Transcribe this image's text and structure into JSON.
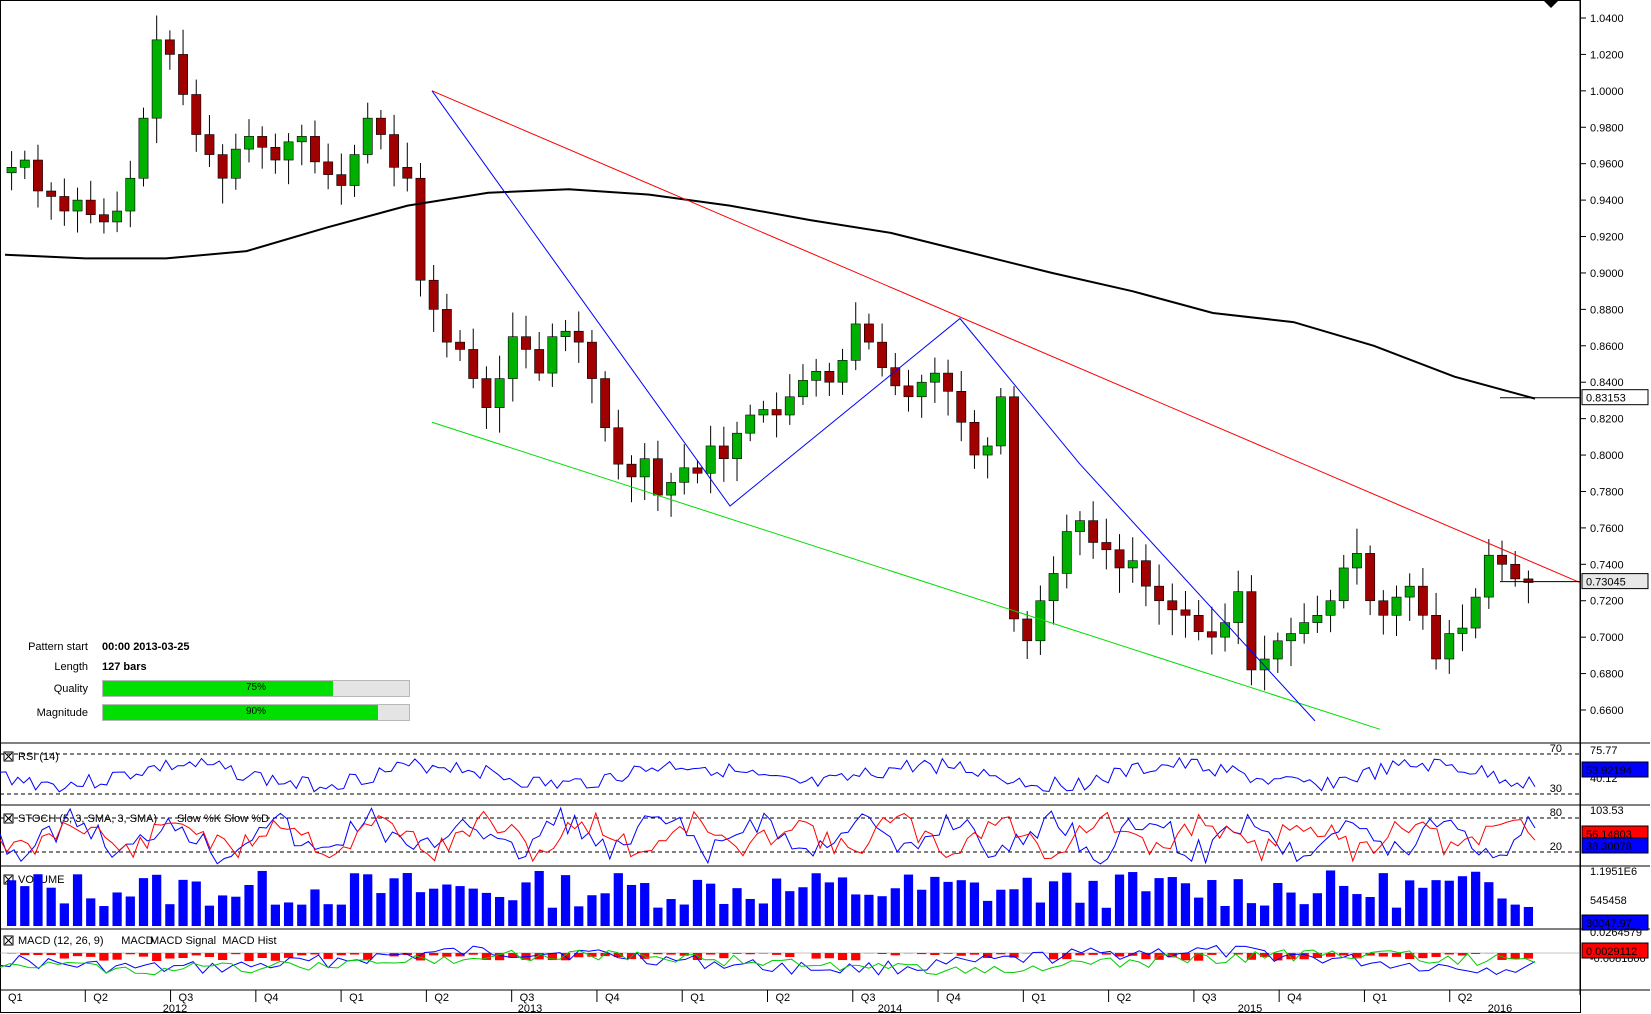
{
  "chart_data": {
    "type": "candlestick",
    "instrument_note": "",
    "price_axis": {
      "ticks": [
        "1.0400",
        "1.0200",
        "1.0000",
        "0.9800",
        "0.9600",
        "0.9400",
        "0.9200",
        "0.9000",
        "0.8800",
        "0.8600",
        "0.8400",
        "0.8200",
        "0.8000",
        "0.7800",
        "0.7600",
        "0.7400",
        "0.7200",
        "0.7000",
        "0.6800",
        "0.6600"
      ],
      "ylim": [
        0.648,
        1.045
      ],
      "last_price": "0.73045",
      "ma_value": "0.83153"
    },
    "x_axis": {
      "quarters": [
        "Q1",
        "Q2",
        "Q3",
        "Q4",
        "Q1",
        "Q2",
        "Q3",
        "Q4",
        "Q1",
        "Q2",
        "Q3",
        "Q4",
        "Q1",
        "Q2",
        "Q3",
        "Q4",
        "Q1",
        "Q2"
      ],
      "years": [
        "2012",
        "2013",
        "2014",
        "2015",
        "2016"
      ]
    },
    "pattern": {
      "start_label": "Pattern start",
      "start_value": "00:00 2013-03-25",
      "length_label": "Length",
      "length_value": "127 bars",
      "quality_label": "Quality",
      "quality_value": 75,
      "quality_text": "75%",
      "magnitude_label": "Magnitude",
      "magnitude_value": 90,
      "magnitude_text": "90%"
    },
    "trendlines": {
      "resistance": [
        [
          0,
          1.0
        ],
        [
          1,
          0.73
        ]
      ],
      "support": [
        [
          0,
          0.818
        ],
        [
          1,
          0.645
        ]
      ],
      "zigzag": [
        1.0,
        0.772,
        0.875,
        0.795,
        0.654
      ]
    },
    "moving_average": [
      0.91,
      0.908,
      0.908,
      0.912,
      0.925,
      0.937,
      0.944,
      0.946,
      0.943,
      0.937,
      0.929,
      0.922,
      0.911,
      0.9,
      0.89,
      0.878,
      0.873,
      0.86,
      0.843,
      0.831
    ],
    "candles_close": [
      0.958,
      0.962,
      0.945,
      0.942,
      0.934,
      0.94,
      0.932,
      0.928,
      0.934,
      0.952,
      0.985,
      1.028,
      1.02,
      0.998,
      0.976,
      0.965,
      0.952,
      0.968,
      0.975,
      0.969,
      0.962,
      0.972,
      0.975,
      0.961,
      0.954,
      0.948,
      0.965,
      0.985,
      0.976,
      0.958,
      0.952,
      0.896,
      0.88,
      0.862,
      0.858,
      0.842,
      0.826,
      0.842,
      0.865,
      0.858,
      0.845,
      0.865,
      0.868,
      0.862,
      0.842,
      0.815,
      0.795,
      0.788,
      0.798,
      0.778,
      0.785,
      0.793,
      0.79,
      0.805,
      0.798,
      0.812,
      0.822,
      0.825,
      0.822,
      0.832,
      0.841,
      0.846,
      0.84,
      0.852,
      0.872,
      0.862,
      0.848,
      0.838,
      0.832,
      0.84,
      0.845,
      0.835,
      0.818,
      0.8,
      0.805,
      0.832,
      0.71,
      0.698,
      0.72,
      0.735,
      0.758,
      0.764,
      0.752,
      0.748,
      0.738,
      0.742,
      0.728,
      0.72,
      0.715,
      0.712,
      0.703,
      0.7,
      0.708,
      0.725,
      0.682,
      0.688,
      0.698,
      0.702,
      0.708,
      0.712,
      0.72,
      0.738,
      0.746,
      0.72,
      0.712,
      0.722,
      0.728,
      0.712,
      0.688,
      0.702,
      0.705,
      0.722,
      0.745,
      0.74,
      0.732,
      0.73
    ],
    "indicators": {
      "rsi": {
        "title": "RSI (14)",
        "levels": [
          "70",
          "30"
        ],
        "scale": [
          "75.77",
          "40.12"
        ],
        "value": "53.92194"
      },
      "stoch": {
        "title": "STOCH (5, 3, SMA, 3, SMA)",
        "k_label": "Slow %K",
        "d_label": "Slow %D",
        "levels": [
          "80",
          "20"
        ],
        "scale": [
          "103.53"
        ],
        "value_k": "56.14803",
        "value_d": "38.30078"
      },
      "volume": {
        "title": "VOLUME",
        "scale": [
          "1.1951E6",
          "545458"
        ],
        "value": "30047.97"
      },
      "macd": {
        "title": "MACD (12, 26, 9)",
        "macd_label": "MACD",
        "signal_label": "MACD Signal",
        "hist_label": "MACD Hist",
        "scale": [
          "0.0264579",
          "-0.0081806"
        ],
        "value": "0.0029112"
      }
    }
  }
}
